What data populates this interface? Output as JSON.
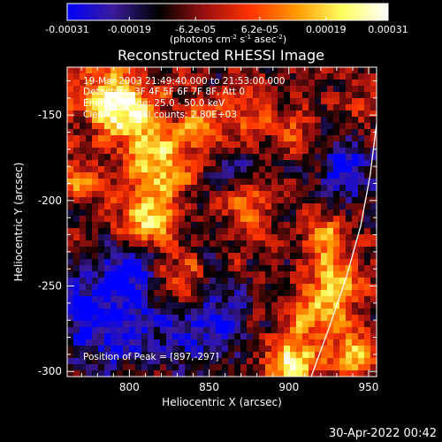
{
  "chart_data": {
    "type": "heatmap",
    "title": "Reconstructed RHESSI Image",
    "xlabel": "Heliocentric X (arcsec)",
    "ylabel": "Heliocentric Y (arcsec)",
    "xlim": [
      761,
      955
    ],
    "ylim": [
      -303,
      -122
    ],
    "x_ticks": [
      800,
      850,
      900,
      950
    ],
    "x_tick_labels": [
      "800",
      "850",
      "900",
      "950"
    ],
    "y_ticks": [
      -150,
      -200,
      -250,
      -300
    ],
    "y_tick_labels": [
      "-150",
      "-200",
      "-250",
      "-300"
    ],
    "colorbar": {
      "min": -0.00031,
      "max": 0.00031,
      "ticks": [
        -0.00031,
        -0.00019,
        -6.2e-05,
        6.2e-05,
        0.00019,
        0.00031
      ],
      "tick_labels": [
        "-0.00031",
        "-0.00019",
        "-6.2e-05",
        "6.2e-05",
        "0.00019",
        "0.00031"
      ],
      "units_text": "(photons cm",
      "units_exp1": "-2",
      "units_mid": " s",
      "units_exp2": "-1",
      "units_mid2": " asec",
      "units_exp3": "-2",
      "units_close": ")",
      "colors": [
        "#0000ff",
        "#3a1a9a",
        "#000000",
        "#9a1010",
        "#ff3300",
        "#ff9900",
        "#ffff60",
        "#ffffff"
      ]
    },
    "annotations": {
      "line1": "19-Mar-2003 21:49:40.000 to 21:53:00.000",
      "line2": "Detectors: 3F 4F 5F 6F 7F 8F, Att 0",
      "line3": "Energy Range: 25.0 - 50.0 keV",
      "line4_a": "Clean",
      "line4_b": "Total counts: 2.80E+03",
      "peak": "Position of Peak = [897,-297]"
    },
    "peak": {
      "x": 897,
      "y": -297
    },
    "hotspots": [
      {
        "x": 790,
        "y": -140,
        "amp": 1.0,
        "sx": 18,
        "sy": 14
      },
      {
        "x": 818,
        "y": -180,
        "amp": 1.1,
        "sx": 14,
        "sy": 14
      },
      {
        "x": 812,
        "y": -212,
        "amp": 1.0,
        "sx": 12,
        "sy": 10
      },
      {
        "x": 803,
        "y": -150,
        "amp": 0.8,
        "sx": 12,
        "sy": 10
      },
      {
        "x": 846,
        "y": -158,
        "amp": 0.7,
        "sx": 10,
        "sy": 9
      },
      {
        "x": 770,
        "y": -190,
        "amp": 0.6,
        "sx": 9,
        "sy": 12
      },
      {
        "x": 835,
        "y": -245,
        "amp": 0.7,
        "sx": 10,
        "sy": 10
      },
      {
        "x": 875,
        "y": -205,
        "amp": 0.6,
        "sx": 10,
        "sy": 14
      },
      {
        "x": 872,
        "y": -150,
        "amp": 0.5,
        "sx": 10,
        "sy": 10
      },
      {
        "x": 921,
        "y": -218,
        "amp": 0.8,
        "sx": 8,
        "sy": 12
      },
      {
        "x": 930,
        "y": -250,
        "amp": 0.9,
        "sx": 10,
        "sy": 14
      },
      {
        "x": 912,
        "y": -268,
        "amp": 0.8,
        "sx": 12,
        "sy": 10
      },
      {
        "x": 901,
        "y": -294,
        "amp": 1.3,
        "sx": 11,
        "sy": 9
      },
      {
        "x": 940,
        "y": -290,
        "amp": 0.9,
        "sx": 9,
        "sy": 10
      },
      {
        "x": 905,
        "y": -160,
        "amp": 0.45,
        "sx": 10,
        "sy": 12
      },
      {
        "x": 945,
        "y": -150,
        "amp": 0.4,
        "sx": 10,
        "sy": 10
      }
    ],
    "negative_regions": [
      {
        "x": 785,
        "y": -270,
        "amp": 0.9,
        "sx": 22,
        "sy": 22
      },
      {
        "x": 850,
        "y": -275,
        "amp": 0.7,
        "sx": 18,
        "sy": 18
      },
      {
        "x": 935,
        "y": -180,
        "amp": 0.7,
        "sx": 14,
        "sy": 18
      },
      {
        "x": 800,
        "y": -240,
        "amp": 0.5,
        "sx": 12,
        "sy": 12
      },
      {
        "x": 865,
        "y": -185,
        "amp": 0.4,
        "sx": 10,
        "sy": 10
      }
    ],
    "limb": [
      [
        914,
        -303
      ],
      [
        925,
        -275
      ],
      [
        936,
        -245
      ],
      [
        945,
        -215
      ],
      [
        951,
        -185
      ],
      [
        955,
        -155
      ]
    ]
  },
  "footer": {
    "date": "30-Apr-2022 00:42"
  }
}
